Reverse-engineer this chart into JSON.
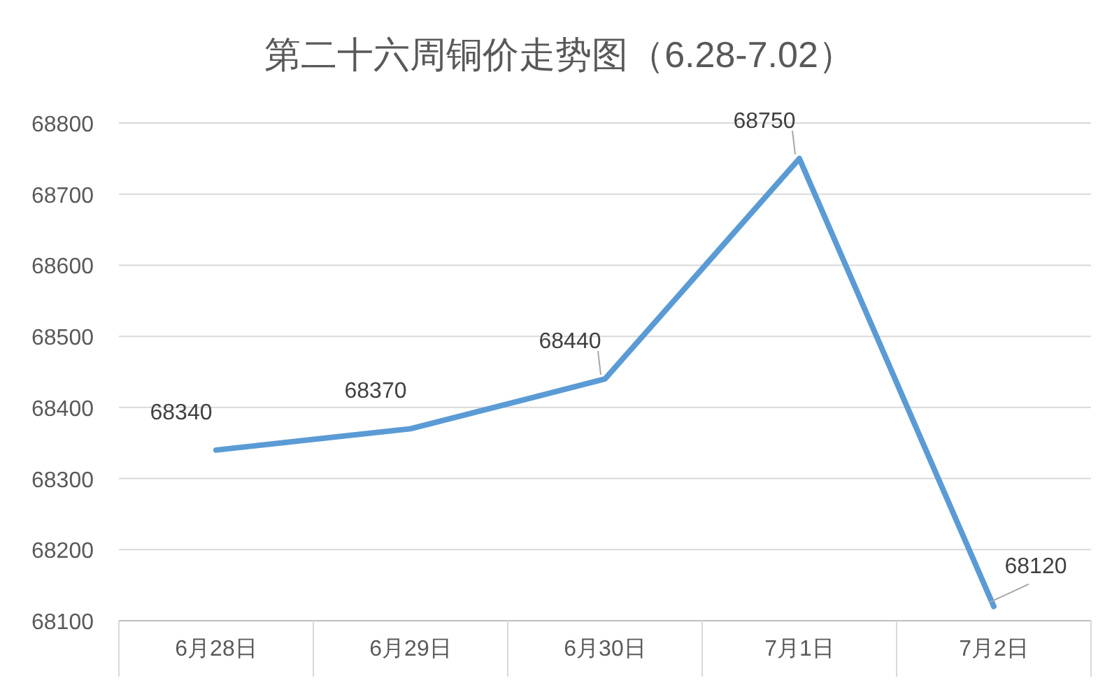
{
  "chart_data": {
    "type": "line",
    "title": "第二十六周铜价走势图（6.28-7.02）",
    "categories": [
      "6月28日",
      "6月29日",
      "6月30日",
      "7月1日",
      "7月2日"
    ],
    "series": [
      {
        "color": "#5b9bd5",
        "values": [
          68340,
          68370,
          68440,
          68750,
          68120
        ]
      }
    ],
    "ylim": [
      68100,
      68800
    ],
    "yticks": [
      68100,
      68200,
      68300,
      68400,
      68500,
      68600,
      68700,
      68800
    ],
    "grid": "y",
    "data_labels": true,
    "marker": "none",
    "line_style": "solid"
  }
}
